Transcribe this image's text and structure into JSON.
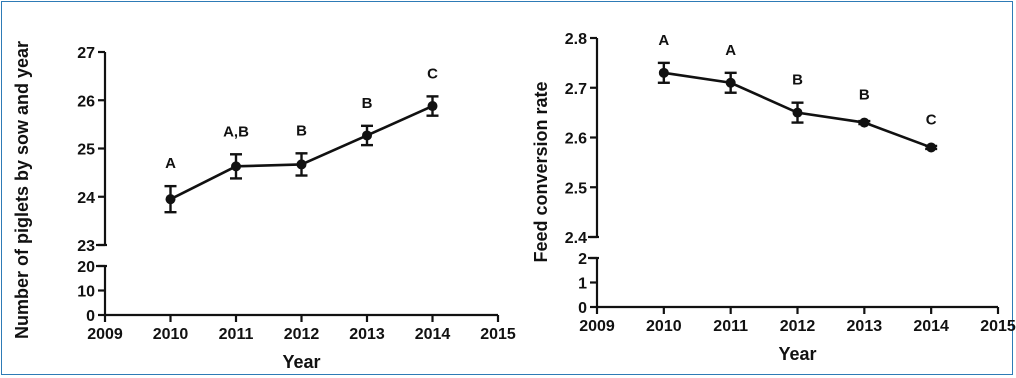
{
  "chart_data": [
    {
      "type": "line",
      "ylabel": "Number of piglets by sow and year",
      "xlabel": "Year",
      "x": [
        2010,
        2011,
        2012,
        2013,
        2014
      ],
      "series": [
        {
          "values": [
            23.95,
            24.63,
            24.67,
            25.27,
            25.88
          ],
          "error": [
            0.27,
            0.25,
            0.23,
            0.2,
            0.2
          ],
          "significance": [
            "A",
            "A,B",
            "B",
            "B",
            "C"
          ]
        }
      ],
      "xlim": [
        2009,
        2015
      ],
      "xticks": [
        "2009",
        "2010",
        "2011",
        "2012",
        "2013",
        "2014",
        "2015"
      ],
      "ylim_upper": [
        23,
        27
      ],
      "yticks_upper": [
        "23",
        "24",
        "25",
        "26",
        "27"
      ],
      "ylim_lower": [
        0,
        20
      ],
      "yticks_lower": [
        "0",
        "10",
        "20"
      ],
      "broken_axis": true,
      "grid": false,
      "legend": false
    },
    {
      "type": "line",
      "ylabel": "Feed conversion rate",
      "xlabel": "Year",
      "x": [
        2010,
        2011,
        2012,
        2013,
        2014
      ],
      "series": [
        {
          "values": [
            2.73,
            2.71,
            2.65,
            2.63,
            2.58
          ],
          "error": [
            0.02,
            0.02,
            0.02,
            0.003,
            0.003
          ],
          "significance": [
            "A",
            "A",
            "B",
            "B",
            "C"
          ]
        }
      ],
      "xlim": [
        2009,
        2015
      ],
      "xticks": [
        "2009",
        "2010",
        "2011",
        "2012",
        "2013",
        "2014",
        "2015"
      ],
      "ylim_upper": [
        2.4,
        2.8
      ],
      "yticks_upper": [
        "2.4",
        "2.5",
        "2.6",
        "2.7",
        "2.8"
      ],
      "ylim_lower": [
        0,
        2
      ],
      "yticks_lower": [
        "0",
        "1",
        "2"
      ],
      "broken_axis": true,
      "grid": false,
      "legend": false
    }
  ]
}
